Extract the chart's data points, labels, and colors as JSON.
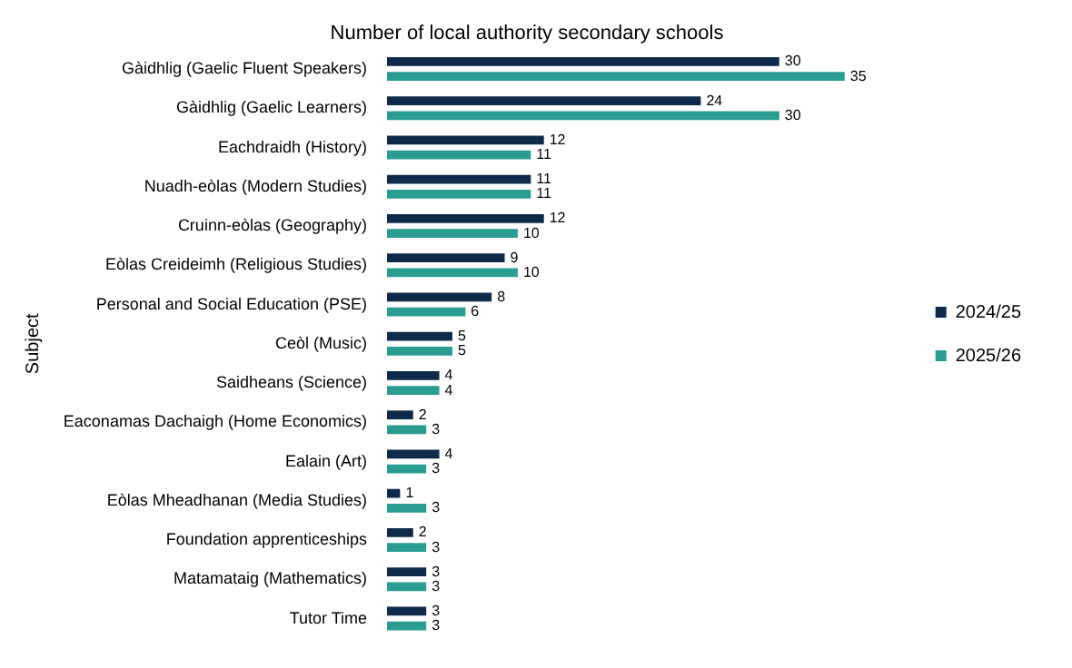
{
  "chart_data": {
    "type": "bar",
    "orientation": "horizontal",
    "title": "Number of local authority secondary schools",
    "ylabel": "Subject",
    "categories": [
      "Gàidhlig (Gaelic Fluent Speakers)",
      "Gàidhlig (Gaelic Learners)",
      "Eachdraidh (History)",
      "Nuadh-eòlas (Modern Studies)",
      "Cruinn-eòlas (Geography)",
      "Eòlas Creideimh (Religious Studies)",
      "Personal and Social Education (PSE)",
      "Ceòl (Music)",
      "Saidheans (Science)",
      "Eaconamas Dachaigh (Home Economics)",
      "Ealain (Art)",
      "Eòlas Mheadhanan (Media Studies)",
      "Foundation apprenticeships",
      "Matamataig (Mathematics)",
      "Tutor Time"
    ],
    "series": [
      {
        "name": "2024/25",
        "color": "#0e2a4a",
        "values": [
          30,
          24,
          12,
          11,
          12,
          9,
          8,
          5,
          4,
          2,
          4,
          1,
          2,
          3,
          3
        ]
      },
      {
        "name": "2025/26",
        "color": "#2a9d92",
        "values": [
          35,
          30,
          11,
          11,
          10,
          10,
          6,
          5,
          4,
          3,
          3,
          3,
          3,
          3,
          3
        ]
      }
    ],
    "data_labels": true,
    "legend": "right",
    "grid": false
  }
}
